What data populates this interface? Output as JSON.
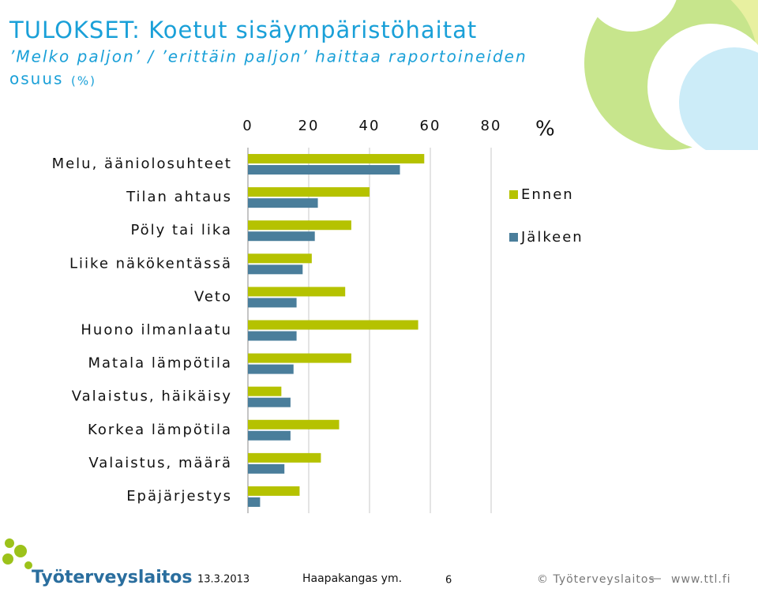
{
  "header": {
    "title": "TULOKSET: Koetut sisäympäristöhaitat",
    "subtitle_lines": [
      "’Melko paljon’ / ’erittäin paljon’ haittaa raportoineiden",
      "osuus"
    ],
    "subtitle_unit": "(%)"
  },
  "chart_data": {
    "type": "bar",
    "orientation": "horizontal",
    "categories": [
      "Melu, ääniolosuhteet",
      "Tilan ahtaus",
      "Pöly tai lika",
      "Liike näkökentässä",
      "Veto",
      "Huono ilmanlaatu",
      "Matala lämpötila",
      "Valaistus, häikäisy",
      "Korkea lämpötila",
      "Valaistus, määrä",
      "Epäjärjestys"
    ],
    "series": [
      {
        "name": "Ennen",
        "color": "#b5c200",
        "values": [
          58,
          40,
          34,
          21,
          32,
          56,
          34,
          11,
          30,
          24,
          17
        ]
      },
      {
        "name": "Jälkeen",
        "color": "#4a7e9b",
        "values": [
          50,
          23,
          22,
          18,
          16,
          16,
          15,
          14,
          14,
          12,
          4
        ]
      }
    ],
    "xlim": [
      0,
      80
    ],
    "xticks": [
      0,
      20,
      40,
      60,
      80
    ],
    "x_unit": "%",
    "grid": true,
    "legend": "right"
  },
  "footer": {
    "logo": "Työterveyslaitos",
    "date": "13.3.2013",
    "author": "Haapakangas ym.",
    "page": "6",
    "copyright": "© Työterveyslaitos",
    "url": "www.ttl.fi"
  }
}
